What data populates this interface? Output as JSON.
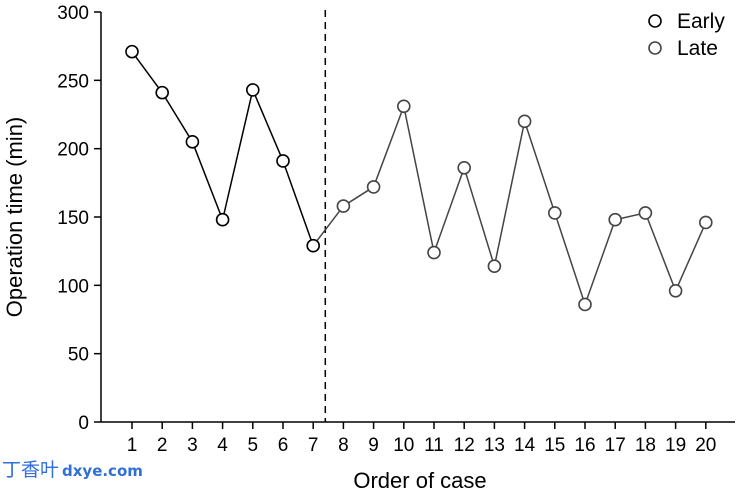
{
  "chart_data": {
    "type": "line",
    "xlabel": "Order of case",
    "ylabel": "Operation time (min)",
    "ylim": [
      0,
      300
    ],
    "yticks": [
      0,
      50,
      100,
      150,
      200,
      250,
      300
    ],
    "xticks": [
      1,
      2,
      3,
      4,
      5,
      6,
      7,
      8,
      9,
      10,
      11,
      12,
      13,
      14,
      15,
      16,
      17,
      18,
      19,
      20
    ],
    "divider_between": [
      7,
      8
    ],
    "legend_position": "top-right",
    "grid": false,
    "series": [
      {
        "name": "Early",
        "color": "#000000",
        "x": [
          1,
          2,
          3,
          4,
          5,
          6,
          7
        ],
        "values": [
          271,
          241,
          205,
          148,
          243,
          191,
          129
        ]
      },
      {
        "name": "Late",
        "color": "#444444",
        "x": [
          8,
          9,
          10,
          11,
          12,
          13,
          14,
          15,
          16,
          17,
          18,
          19,
          20
        ],
        "values": [
          158,
          172,
          231,
          124,
          186,
          114,
          220,
          153,
          86,
          148,
          153,
          96,
          146
        ]
      }
    ]
  },
  "watermark": {
    "chinese": "丁香叶",
    "latin": "dxye.com"
  }
}
